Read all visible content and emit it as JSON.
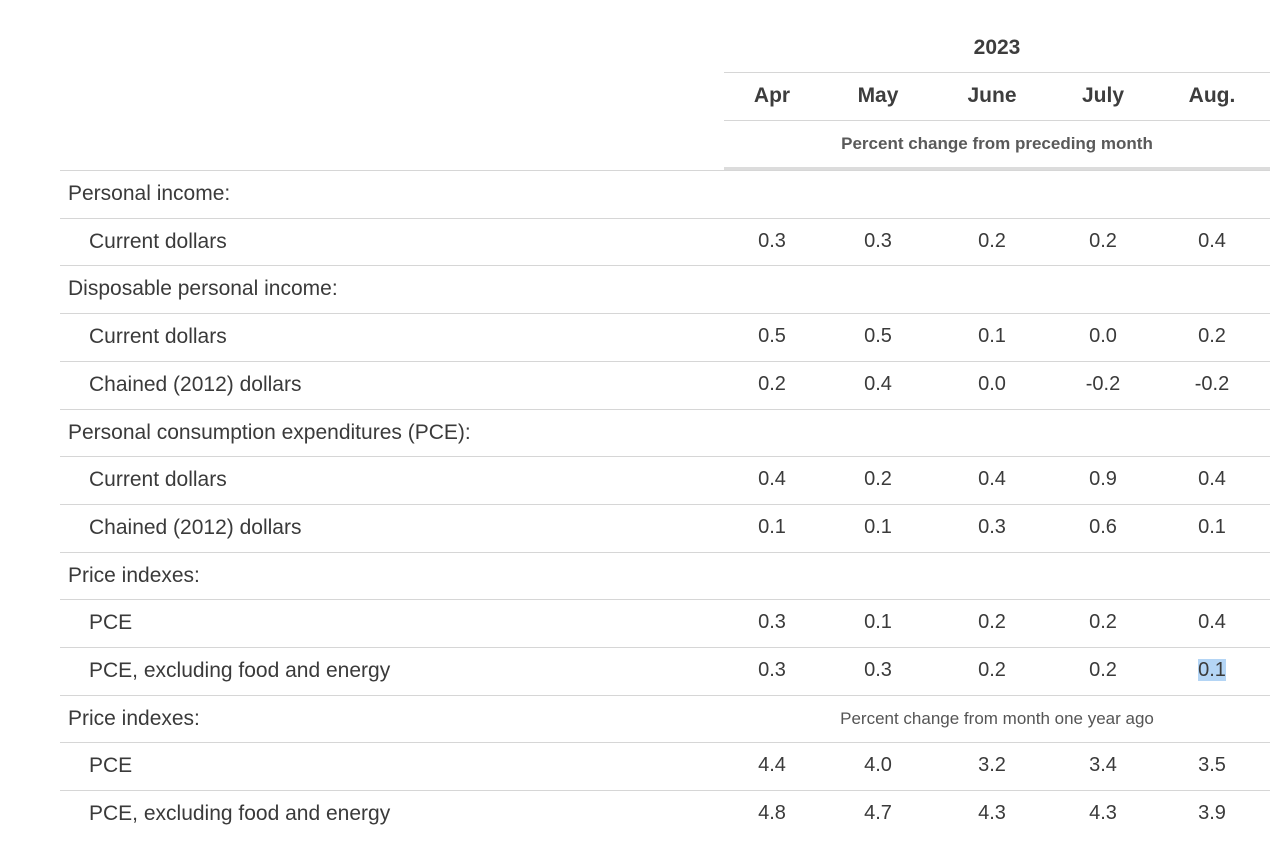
{
  "header": {
    "year": "2023",
    "months": [
      "Apr",
      "May",
      "June",
      "July",
      "Aug."
    ],
    "subheading": "Percent change from preceding month"
  },
  "rows": [
    {
      "type": "group",
      "label": "Personal income:"
    },
    {
      "type": "item",
      "label": "Current dollars",
      "values": [
        "0.3",
        "0.3",
        "0.2",
        "0.2",
        "0.4"
      ]
    },
    {
      "type": "group",
      "label": "Disposable personal income:"
    },
    {
      "type": "item",
      "label": "Current dollars",
      "values": [
        "0.5",
        "0.5",
        "0.1",
        "0.0",
        "0.2"
      ]
    },
    {
      "type": "item",
      "label": "Chained (2012) dollars",
      "values": [
        "0.2",
        "0.4",
        "0.0",
        "-0.2",
        "-0.2"
      ]
    },
    {
      "type": "group",
      "label": "Personal consumption expenditures (PCE):"
    },
    {
      "type": "item",
      "label": "Current dollars",
      "values": [
        "0.4",
        "0.2",
        "0.4",
        "0.9",
        "0.4"
      ]
    },
    {
      "type": "item",
      "label": "Chained (2012) dollars",
      "values": [
        "0.1",
        "0.1",
        "0.3",
        "0.6",
        "0.1"
      ]
    },
    {
      "type": "group",
      "label": "Price indexes:"
    },
    {
      "type": "item",
      "label": "PCE",
      "values": [
        "0.3",
        "0.1",
        "0.2",
        "0.2",
        "0.4"
      ]
    },
    {
      "type": "item",
      "label": "PCE, excluding food and energy",
      "values": [
        "0.3",
        "0.3",
        "0.2",
        "0.2",
        "0.1"
      ],
      "selected_cell": 4
    },
    {
      "type": "group",
      "label": "Price indexes:",
      "note": "Percent change from month one year ago"
    },
    {
      "type": "item",
      "label": "PCE",
      "values": [
        "4.4",
        "4.0",
        "3.2",
        "3.4",
        "3.5"
      ]
    },
    {
      "type": "item",
      "label": "PCE, excluding food and energy",
      "values": [
        "4.8",
        "4.7",
        "4.3",
        "4.3",
        "3.9"
      ]
    }
  ],
  "colors": {
    "selection_highlight": "#b4d5f5",
    "rule": "#d6d6d6"
  }
}
